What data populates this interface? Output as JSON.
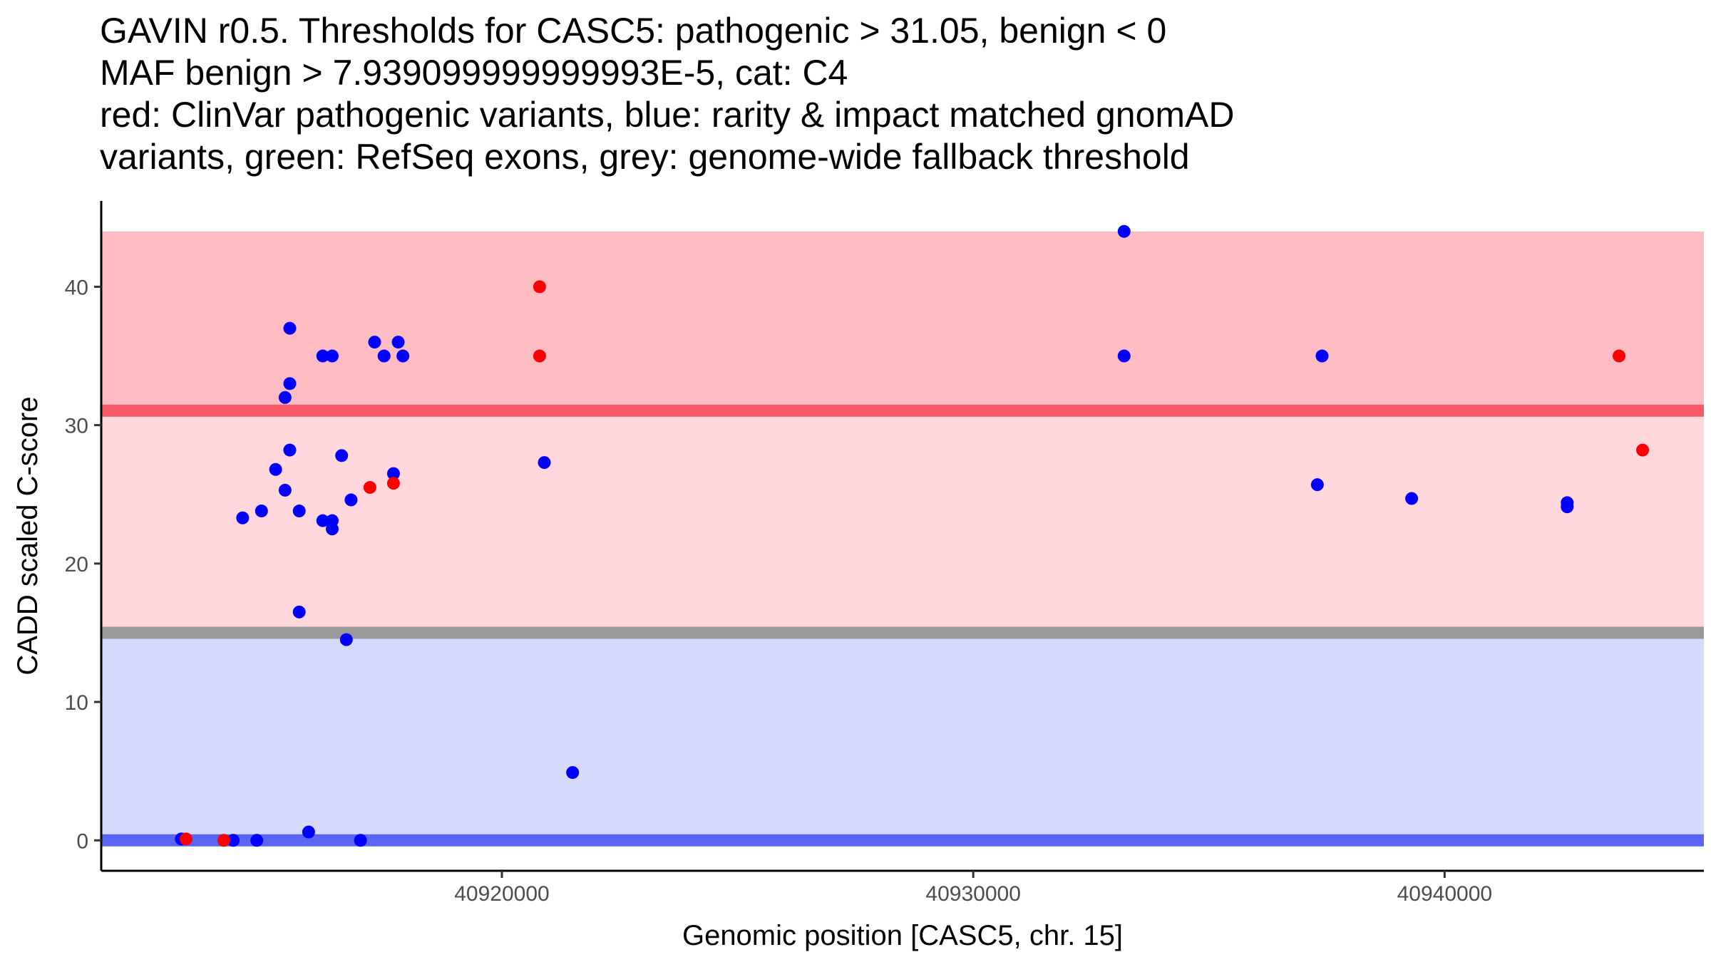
{
  "chart_data": {
    "type": "scatter",
    "title_lines": [
      "GAVIN r0.5. Thresholds for CASC5: pathogenic > 31.05, benign < 0",
      "MAF benign > 7.939099999999993E-5, cat: C4",
      "red: ClinVar pathogenic variants, blue: rarity & impact matched gnomAD",
      "variants, green: RefSeq exons, grey: genome-wide fallback threshold"
    ],
    "xlabel": "Genomic position [CASC5, chr. 15]",
    "ylabel": "CADD scaled C-score",
    "xlim": [
      40911500,
      40945500
    ],
    "ylim": [
      -2.2,
      46.2
    ],
    "x_ticks": [
      {
        "value": 40920000,
        "label": "40920000"
      },
      {
        "value": 40930000,
        "label": "40930000"
      },
      {
        "value": 40940000,
        "label": "40940000"
      }
    ],
    "y_ticks": [
      {
        "value": 0,
        "label": "0"
      },
      {
        "value": 10,
        "label": "10"
      },
      {
        "value": 20,
        "label": "20"
      },
      {
        "value": 30,
        "label": "30"
      },
      {
        "value": 40,
        "label": "40"
      }
    ],
    "regions": [
      {
        "name": "pathogenic",
        "y0": 31.05,
        "y1": 44,
        "color": "#ffbcc3"
      },
      {
        "name": "vus",
        "y0": 15.3,
        "y1": 31.05,
        "color": "#ffd7dd"
      },
      {
        "name": "benign",
        "y0": 0,
        "y1": 14.6,
        "color": "#d7d9fb"
      }
    ],
    "threshold_lines": [
      {
        "name": "pathogenic-threshold",
        "value": 31.05,
        "color": "#f75b69"
      },
      {
        "name": "fallback-threshold",
        "value": 15.0,
        "color": "#999999"
      },
      {
        "name": "benign-threshold",
        "value": 0,
        "color": "#5a66f2"
      }
    ],
    "series": [
      {
        "name": "ClinVar pathogenic variants",
        "color": "#ff0000",
        "points": [
          {
            "x": 40913300,
            "y": 0.1
          },
          {
            "x": 40914100,
            "y": 0.0
          },
          {
            "x": 40917200,
            "y": 25.5
          },
          {
            "x": 40917700,
            "y": 25.8
          },
          {
            "x": 40920800,
            "y": 40
          },
          {
            "x": 40920800,
            "y": 35
          },
          {
            "x": 40943700,
            "y": 35
          },
          {
            "x": 40944200,
            "y": 28.2
          }
        ]
      },
      {
        "name": "rarity & impact matched gnomAD variants",
        "color": "#0000ff",
        "points": [
          {
            "x": 40913200,
            "y": 0.1
          },
          {
            "x": 40914300,
            "y": 0.0
          },
          {
            "x": 40914800,
            "y": 0.0
          },
          {
            "x": 40915900,
            "y": 0.6
          },
          {
            "x": 40917000,
            "y": 0.0
          },
          {
            "x": 40914500,
            "y": 23.3
          },
          {
            "x": 40914900,
            "y": 23.8
          },
          {
            "x": 40915200,
            "y": 26.8
          },
          {
            "x": 40915400,
            "y": 25.3
          },
          {
            "x": 40915500,
            "y": 28.2
          },
          {
            "x": 40915400,
            "y": 32
          },
          {
            "x": 40915500,
            "y": 33
          },
          {
            "x": 40915500,
            "y": 37
          },
          {
            "x": 40915700,
            "y": 23.8
          },
          {
            "x": 40915700,
            "y": 16.5
          },
          {
            "x": 40916200,
            "y": 35
          },
          {
            "x": 40916400,
            "y": 35
          },
          {
            "x": 40916200,
            "y": 23.1
          },
          {
            "x": 40916400,
            "y": 23.1
          },
          {
            "x": 40916400,
            "y": 22.5
          },
          {
            "x": 40916600,
            "y": 27.8
          },
          {
            "x": 40916700,
            "y": 14.5
          },
          {
            "x": 40916800,
            "y": 24.6
          },
          {
            "x": 40917300,
            "y": 36
          },
          {
            "x": 40917500,
            "y": 35
          },
          {
            "x": 40917700,
            "y": 26.5
          },
          {
            "x": 40917800,
            "y": 36
          },
          {
            "x": 40917900,
            "y": 35
          },
          {
            "x": 40920900,
            "y": 27.3
          },
          {
            "x": 40921500,
            "y": 4.9
          },
          {
            "x": 40933200,
            "y": 44
          },
          {
            "x": 40933200,
            "y": 35
          },
          {
            "x": 40937300,
            "y": 25.7
          },
          {
            "x": 40937400,
            "y": 35
          },
          {
            "x": 40939300,
            "y": 24.7
          },
          {
            "x": 40942600,
            "y": 24.4
          },
          {
            "x": 40942600,
            "y": 24.1
          }
        ]
      }
    ]
  }
}
